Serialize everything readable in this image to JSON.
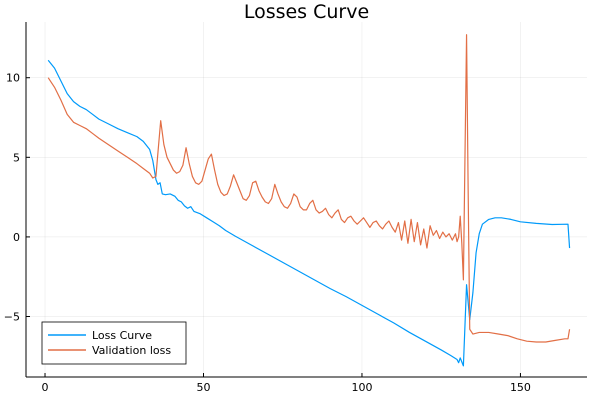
{
  "chart_data": {
    "type": "line",
    "title": "Losses Curve",
    "xlabel": "",
    "ylabel": "",
    "xlim": [
      -6,
      171
    ],
    "ylim": [
      -8.8,
      13.5
    ],
    "xticks": [
      0,
      50,
      100,
      150
    ],
    "yticks": [
      -5,
      0,
      5,
      10
    ],
    "grid": true,
    "legend_position": "bottom-left",
    "series": [
      {
        "name": "Loss Curve",
        "color": "#009AFA",
        "points": [
          [
            1,
            11.1
          ],
          [
            3,
            10.6
          ],
          [
            5,
            9.8
          ],
          [
            7,
            9.0
          ],
          [
            9,
            8.5
          ],
          [
            11,
            8.2
          ],
          [
            13,
            8.0
          ],
          [
            15,
            7.7
          ],
          [
            17,
            7.4
          ],
          [
            20,
            7.1
          ],
          [
            23,
            6.8
          ],
          [
            26,
            6.55
          ],
          [
            29,
            6.3
          ],
          [
            31,
            6.0
          ],
          [
            33,
            5.5
          ],
          [
            34,
            4.8
          ],
          [
            35,
            3.6
          ],
          [
            35.6,
            3.3
          ],
          [
            36.3,
            3.4
          ],
          [
            37,
            2.7
          ],
          [
            38,
            2.65
          ],
          [
            39.5,
            2.7
          ],
          [
            41,
            2.55
          ],
          [
            42,
            2.3
          ],
          [
            43,
            2.2
          ],
          [
            44,
            1.95
          ],
          [
            45,
            1.8
          ],
          [
            46,
            1.9
          ],
          [
            47,
            1.6
          ],
          [
            49,
            1.45
          ],
          [
            51,
            1.2
          ],
          [
            53,
            0.95
          ],
          [
            55,
            0.7
          ],
          [
            57,
            0.4
          ],
          [
            60,
            0.05
          ],
          [
            65,
            -0.5
          ],
          [
            70,
            -1.05
          ],
          [
            75,
            -1.6
          ],
          [
            80,
            -2.15
          ],
          [
            85,
            -2.7
          ],
          [
            90,
            -3.25
          ],
          [
            95,
            -3.75
          ],
          [
            100,
            -4.3
          ],
          [
            105,
            -4.85
          ],
          [
            110,
            -5.4
          ],
          [
            115,
            -6.0
          ],
          [
            120,
            -6.55
          ],
          [
            125,
            -7.1
          ],
          [
            128,
            -7.45
          ],
          [
            130,
            -7.7
          ],
          [
            130.5,
            -7.9
          ],
          [
            131,
            -7.6
          ],
          [
            132,
            -8.1
          ],
          [
            133,
            -3.0
          ],
          [
            134,
            -5.2
          ],
          [
            135,
            -3.5
          ],
          [
            136,
            -1.0
          ],
          [
            137,
            0.2
          ],
          [
            138,
            0.8
          ],
          [
            140,
            1.1
          ],
          [
            142,
            1.2
          ],
          [
            144,
            1.2
          ],
          [
            147,
            1.1
          ],
          [
            150,
            0.95
          ],
          [
            155,
            0.85
          ],
          [
            160,
            0.78
          ],
          [
            165,
            0.8
          ],
          [
            165.5,
            -0.7
          ]
        ]
      },
      {
        "name": "Validation loss",
        "color": "#E26F46",
        "points": [
          [
            1,
            10.0
          ],
          [
            3,
            9.4
          ],
          [
            5,
            8.6
          ],
          [
            7,
            7.7
          ],
          [
            9,
            7.2
          ],
          [
            11,
            7.0
          ],
          [
            13,
            6.8
          ],
          [
            15,
            6.5
          ],
          [
            17,
            6.2
          ],
          [
            20,
            5.8
          ],
          [
            23,
            5.4
          ],
          [
            26,
            5.0
          ],
          [
            29,
            4.6
          ],
          [
            31,
            4.3
          ],
          [
            33,
            4.0
          ],
          [
            34,
            3.7
          ],
          [
            35,
            3.8
          ],
          [
            35.5,
            5.0
          ],
          [
            36.5,
            7.3
          ],
          [
            37.5,
            5.8
          ],
          [
            38.5,
            5.0
          ],
          [
            39.5,
            4.6
          ],
          [
            40.5,
            4.2
          ],
          [
            41.5,
            4.0
          ],
          [
            42.5,
            4.1
          ],
          [
            43.5,
            4.5
          ],
          [
            44.5,
            5.6
          ],
          [
            45.5,
            4.6
          ],
          [
            46.5,
            3.8
          ],
          [
            47.5,
            3.4
          ],
          [
            48.5,
            3.3
          ],
          [
            49.5,
            3.5
          ],
          [
            50.5,
            4.2
          ],
          [
            51.5,
            4.9
          ],
          [
            52.5,
            5.2
          ],
          [
            53.5,
            4.2
          ],
          [
            54.5,
            3.3
          ],
          [
            55.5,
            2.8
          ],
          [
            56.5,
            2.6
          ],
          [
            57.5,
            2.7
          ],
          [
            58.5,
            3.2
          ],
          [
            59.5,
            3.9
          ],
          [
            60.5,
            3.4
          ],
          [
            61.5,
            2.9
          ],
          [
            62.5,
            2.4
          ],
          [
            63.5,
            2.3
          ],
          [
            64.5,
            2.6
          ],
          [
            65.5,
            3.4
          ],
          [
            66.5,
            3.5
          ],
          [
            67.5,
            2.9
          ],
          [
            68.5,
            2.5
          ],
          [
            69.5,
            2.2
          ],
          [
            70.5,
            2.1
          ],
          [
            71.5,
            2.4
          ],
          [
            72.5,
            3.3
          ],
          [
            73.5,
            2.7
          ],
          [
            74.5,
            2.2
          ],
          [
            75.5,
            1.9
          ],
          [
            76.5,
            1.8
          ],
          [
            77.5,
            2.1
          ],
          [
            78.5,
            2.7
          ],
          [
            79.5,
            2.5
          ],
          [
            80.5,
            1.9
          ],
          [
            81.5,
            1.7
          ],
          [
            82.5,
            1.7
          ],
          [
            83.5,
            2.1
          ],
          [
            84.5,
            2.3
          ],
          [
            85.5,
            1.7
          ],
          [
            86.5,
            1.5
          ],
          [
            87.5,
            1.6
          ],
          [
            88.5,
            1.8
          ],
          [
            89.5,
            1.4
          ],
          [
            90.5,
            1.2
          ],
          [
            91.5,
            1.5
          ],
          [
            92.5,
            1.7
          ],
          [
            93.5,
            1.1
          ],
          [
            94.5,
            0.9
          ],
          [
            95.5,
            1.2
          ],
          [
            96.5,
            1.3
          ],
          [
            97.5,
            1.0
          ],
          [
            98.5,
            0.8
          ],
          [
            99.5,
            1.0
          ],
          [
            100.5,
            1.2
          ],
          [
            101.5,
            0.9
          ],
          [
            102.5,
            0.6
          ],
          [
            103.5,
            0.9
          ],
          [
            104.5,
            1.0
          ],
          [
            105.5,
            0.7
          ],
          [
            106.5,
            0.5
          ],
          [
            107.5,
            0.8
          ],
          [
            108.5,
            1.0
          ],
          [
            109.5,
            0.6
          ],
          [
            110.5,
            0.3
          ],
          [
            111.5,
            0.9
          ],
          [
            112.5,
            -0.2
          ],
          [
            113.5,
            1.0
          ],
          [
            114.5,
            -0.4
          ],
          [
            115.5,
            1.1
          ],
          [
            116.5,
            -0.3
          ],
          [
            117.5,
            0.9
          ],
          [
            118.5,
            -0.5
          ],
          [
            119.5,
            0.5
          ],
          [
            120.5,
            -0.7
          ],
          [
            121.5,
            0.7
          ],
          [
            122.5,
            0.1
          ],
          [
            123.5,
            0.4
          ],
          [
            124.5,
            -0.1
          ],
          [
            125.5,
            0.3
          ],
          [
            126.5,
            0.0
          ],
          [
            127.5,
            0.2
          ],
          [
            128.5,
            -0.2
          ],
          [
            129.5,
            0.2
          ],
          [
            130,
            -0.3
          ],
          [
            130.5,
            0.0
          ],
          [
            131,
            1.3
          ],
          [
            131.5,
            -0.4
          ],
          [
            132,
            -2.7
          ],
          [
            132.5,
            5.0
          ],
          [
            133,
            12.7
          ],
          [
            133.5,
            3.0
          ],
          [
            134,
            -5.8
          ],
          [
            135,
            -6.1
          ],
          [
            137,
            -6.0
          ],
          [
            140,
            -6.0
          ],
          [
            143,
            -6.1
          ],
          [
            146,
            -6.2
          ],
          [
            149,
            -6.4
          ],
          [
            152,
            -6.55
          ],
          [
            155,
            -6.6
          ],
          [
            158,
            -6.6
          ],
          [
            161,
            -6.5
          ],
          [
            164,
            -6.4
          ],
          [
            165,
            -6.4
          ],
          [
            165.5,
            -5.8
          ]
        ]
      }
    ]
  }
}
